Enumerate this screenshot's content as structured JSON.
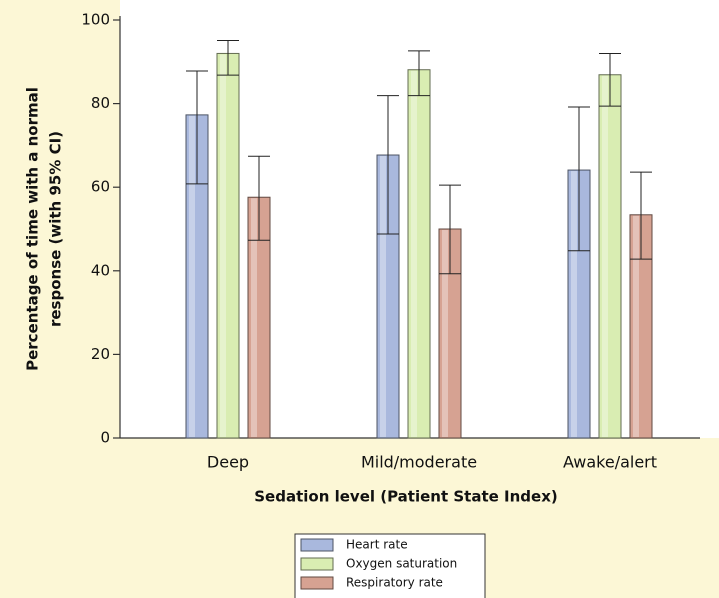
{
  "chart_data": {
    "type": "bar",
    "y_label": [
      "Percentage of time with a normal",
      "response (with 95% CI)"
    ],
    "x_label": "Sedation level (Patient State Index)",
    "categories": [
      "Deep",
      "Mild/moderate",
      "Awake/alert"
    ],
    "series": [
      {
        "name": "Heart rate",
        "color": "#a9b8dd",
        "values": [
          77.3,
          67.7,
          64.1
        ],
        "ci_low": [
          60.8,
          48.8,
          44.8
        ],
        "ci_high": [
          87.8,
          81.9,
          79.2
        ]
      },
      {
        "name": "Oxygen saturation",
        "color": "#d9edb2",
        "values": [
          92,
          88.1,
          86.9
        ],
        "ci_low": [
          86.8,
          81.9,
          79.4
        ],
        "ci_high": [
          95.1,
          92.6,
          92
        ]
      },
      {
        "name": "Respiratory rate",
        "color": "#d6a292",
        "values": [
          57.6,
          50,
          53.4
        ],
        "ci_low": [
          47.3,
          39.3,
          42.8
        ],
        "ci_high": [
          67.4,
          60.5,
          63.6
        ]
      }
    ],
    "ylim": [
      0,
      100
    ],
    "yticks": [
      0,
      20,
      40,
      60,
      80,
      100
    ]
  }
}
